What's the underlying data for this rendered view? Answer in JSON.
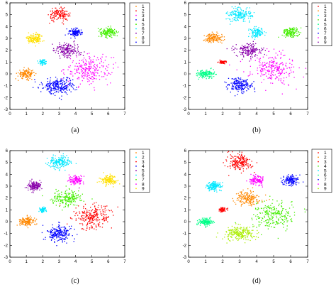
{
  "figure": {
    "legend_entries": [
      "1",
      "2",
      "3",
      "4",
      "5",
      "6",
      "7",
      "8",
      "9"
    ],
    "colors": [
      "#ff0000",
      "#ff8800",
      "#ffe000",
      "#44ee00",
      "#00ff88",
      "#00e8ff",
      "#0000ff",
      "#ff00ff",
      "#8800aa"
    ]
  },
  "chart_data": [
    {
      "type": "scatter",
      "panel_label": "(a)",
      "xlim": [
        0,
        7
      ],
      "ylim": [
        -3,
        6
      ],
      "xticks": [
        0,
        1,
        2,
        3,
        4,
        5,
        6,
        7
      ],
      "yticks": [
        -3,
        -2,
        -1,
        0,
        1,
        2,
        3,
        4,
        5,
        6
      ],
      "grid": false,
      "legend_position": "top-right",
      "series": [
        {
          "name": "1",
          "color": "#ff8800",
          "cx": 1.0,
          "cy": 0.0,
          "sx": 0.25,
          "sy": 0.2,
          "n": 150
        },
        {
          "name": "2",
          "color": "#ff0000",
          "cx": 3.0,
          "cy": 5.0,
          "sx": 0.3,
          "sy": 0.25,
          "n": 150
        },
        {
          "name": "3",
          "color": "#ff00ff",
          "cx": 4.8,
          "cy": 0.4,
          "sx": 0.7,
          "sy": 0.6,
          "n": 250
        },
        {
          "name": "4",
          "color": "#0000ff",
          "cx": 3.0,
          "cy": -1.0,
          "sx": 0.5,
          "sy": 0.35,
          "n": 250
        },
        {
          "name": "5",
          "color": "#44ee00",
          "cx": 6.0,
          "cy": 3.5,
          "sx": 0.25,
          "sy": 0.2,
          "n": 150
        },
        {
          "name": "6",
          "color": "#00e8ff",
          "cx": 2.0,
          "cy": 1.0,
          "sx": 0.12,
          "sy": 0.1,
          "n": 60
        },
        {
          "name": "7",
          "color": "#8800aa",
          "cx": 3.5,
          "cy": 2.0,
          "sx": 0.4,
          "sy": 0.3,
          "n": 180
        },
        {
          "name": "8",
          "color": "#ffe000",
          "cx": 1.5,
          "cy": 3.0,
          "sx": 0.25,
          "sy": 0.2,
          "n": 150
        },
        {
          "name": "9",
          "color": "#0000ff",
          "cx": 4.0,
          "cy": 3.5,
          "sx": 0.2,
          "sy": 0.18,
          "n": 120
        }
      ]
    },
    {
      "type": "scatter",
      "panel_label": "(b)",
      "xlim": [
        0,
        7
      ],
      "ylim": [
        -3,
        6
      ],
      "xticks": [
        0,
        1,
        2,
        3,
        4,
        5,
        6,
        7
      ],
      "yticks": [
        -3,
        -2,
        -1,
        0,
        1,
        2,
        3,
        4,
        5,
        6
      ],
      "grid": false,
      "legend_position": "top-right",
      "series": [
        {
          "name": "1",
          "color": "#ff0000",
          "cx": 2.0,
          "cy": 1.0,
          "sx": 0.12,
          "sy": 0.08,
          "n": 60
        },
        {
          "name": "2",
          "color": "#ff8800",
          "cx": 1.5,
          "cy": 3.0,
          "sx": 0.25,
          "sy": 0.2,
          "n": 150
        },
        {
          "name": "3",
          "color": "#00e8ff",
          "cx": 3.0,
          "cy": 5.0,
          "sx": 0.35,
          "sy": 0.3,
          "n": 180
        },
        {
          "name": "4",
          "color": "#44ee00",
          "cx": 6.0,
          "cy": 3.5,
          "sx": 0.25,
          "sy": 0.2,
          "n": 150
        },
        {
          "name": "5",
          "color": "#00ff88",
          "cx": 1.0,
          "cy": 0.0,
          "sx": 0.25,
          "sy": 0.15,
          "n": 150
        },
        {
          "name": "6",
          "color": "#00e8ff",
          "cx": 4.0,
          "cy": 3.5,
          "sx": 0.22,
          "sy": 0.2,
          "n": 120
        },
        {
          "name": "7",
          "color": "#0000ff",
          "cx": 3.0,
          "cy": -1.0,
          "sx": 0.35,
          "sy": 0.3,
          "n": 200
        },
        {
          "name": "8",
          "color": "#ff00ff",
          "cx": 5.0,
          "cy": 0.5,
          "sx": 0.65,
          "sy": 0.65,
          "n": 250
        },
        {
          "name": "9",
          "color": "#8800aa",
          "cx": 3.5,
          "cy": 2.0,
          "sx": 0.4,
          "sy": 0.3,
          "n": 180
        }
      ]
    },
    {
      "type": "scatter",
      "panel_label": "(c)",
      "xlim": [
        0,
        7
      ],
      "ylim": [
        -3,
        6
      ],
      "xticks": [
        0,
        1,
        2,
        3,
        4,
        5,
        6,
        7
      ],
      "yticks": [
        -3,
        -2,
        -1,
        0,
        1,
        2,
        3,
        4,
        5,
        6
      ],
      "grid": false,
      "legend_position": "top-right",
      "series": [
        {
          "name": "1",
          "color": "#ff8800",
          "cx": 1.0,
          "cy": 0.0,
          "sx": 0.22,
          "sy": 0.18,
          "n": 150
        },
        {
          "name": "2",
          "color": "#00e8ff",
          "cx": 3.0,
          "cy": 5.0,
          "sx": 0.35,
          "sy": 0.3,
          "n": 180
        },
        {
          "name": "3",
          "color": "#ff0000",
          "cx": 5.0,
          "cy": 0.5,
          "sx": 0.6,
          "sy": 0.5,
          "n": 250
        },
        {
          "name": "4",
          "color": "#0000ff",
          "cx": 3.0,
          "cy": -1.0,
          "sx": 0.4,
          "sy": 0.35,
          "n": 220
        },
        {
          "name": "5",
          "color": "#8800aa",
          "cx": 1.5,
          "cy": 3.0,
          "sx": 0.22,
          "sy": 0.2,
          "n": 150
        },
        {
          "name": "6",
          "color": "#00e8ff",
          "cx": 2.0,
          "cy": 1.0,
          "sx": 0.12,
          "sy": 0.1,
          "n": 60
        },
        {
          "name": "7",
          "color": "#44ee00",
          "cx": 3.5,
          "cy": 2.0,
          "sx": 0.45,
          "sy": 0.35,
          "n": 200
        },
        {
          "name": "8",
          "color": "#ff00ff",
          "cx": 4.0,
          "cy": 3.5,
          "sx": 0.22,
          "sy": 0.2,
          "n": 120
        },
        {
          "name": "9",
          "color": "#ffe000",
          "cx": 6.0,
          "cy": 3.5,
          "sx": 0.25,
          "sy": 0.2,
          "n": 150
        }
      ]
    },
    {
      "type": "scatter",
      "panel_label": "(d)",
      "xlim": [
        0,
        7
      ],
      "ylim": [
        -3,
        6
      ],
      "xticks": [
        0,
        1,
        2,
        3,
        4,
        5,
        6,
        7
      ],
      "yticks": [
        -3,
        -2,
        -1,
        0,
        1,
        2,
        3,
        4,
        5,
        6
      ],
      "grid": false,
      "legend_position": "top-right",
      "series": [
        {
          "name": "1",
          "color": "#ff0000",
          "cx": 3.0,
          "cy": 5.0,
          "sx": 0.35,
          "sy": 0.35,
          "n": 200
        },
        {
          "name": "2",
          "color": "#ff8800",
          "cx": 3.5,
          "cy": 2.0,
          "sx": 0.35,
          "sy": 0.3,
          "n": 180
        },
        {
          "name": "3",
          "color": "#ff0000",
          "cx": 2.0,
          "cy": 1.0,
          "sx": 0.12,
          "sy": 0.1,
          "n": 60
        },
        {
          "name": "4",
          "color": "#44ee00",
          "cx": 5.0,
          "cy": 0.5,
          "sx": 0.6,
          "sy": 0.6,
          "n": 250
        },
        {
          "name": "5",
          "color": "#00e8ff",
          "cx": 1.5,
          "cy": 3.0,
          "sx": 0.22,
          "sy": 0.2,
          "n": 150
        },
        {
          "name": "6",
          "color": "#00ff88",
          "cx": 1.0,
          "cy": 0.0,
          "sx": 0.22,
          "sy": 0.15,
          "n": 150
        },
        {
          "name": "7",
          "color": "#0000ff",
          "cx": 6.0,
          "cy": 3.5,
          "sx": 0.22,
          "sy": 0.2,
          "n": 150
        },
        {
          "name": "8",
          "color": "#ff00ff",
          "cx": 4.0,
          "cy": 3.5,
          "sx": 0.22,
          "sy": 0.2,
          "n": 120
        },
        {
          "name": "9",
          "color": "#aaee00",
          "cx": 3.0,
          "cy": -1.0,
          "sx": 0.5,
          "sy": 0.3,
          "n": 220
        }
      ]
    }
  ]
}
